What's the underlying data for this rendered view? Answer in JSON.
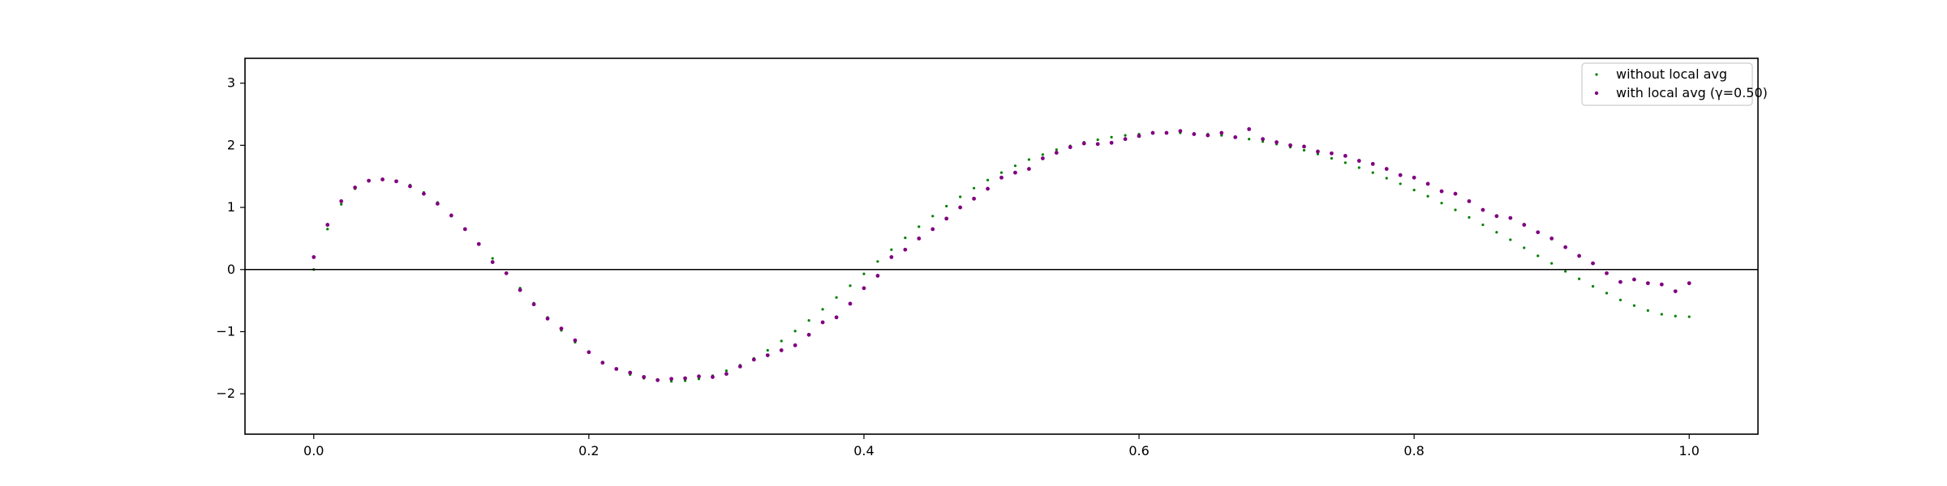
{
  "chart_data": {
    "type": "scatter",
    "title": "",
    "xlabel": "",
    "ylabel": "",
    "xlim": [
      -0.05,
      1.05
    ],
    "ylim": [
      -2.65,
      3.4
    ],
    "xticks": [
      0.0,
      0.2,
      0.4,
      0.6,
      0.8,
      1.0
    ],
    "xtick_labels": [
      "0.0",
      "0.2",
      "0.4",
      "0.6",
      "0.8",
      "1.0"
    ],
    "yticks": [
      -2,
      -1,
      0,
      1,
      2,
      3
    ],
    "ytick_labels": [
      "−2",
      "−1",
      "0",
      "1",
      "2",
      "3"
    ],
    "hline_y": 0,
    "grid": false,
    "legend_position": "top-right",
    "series": [
      {
        "name": "without local avg",
        "color": "#008000",
        "marker_size": "small",
        "x": [
          0.0,
          0.01,
          0.02,
          0.03,
          0.04,
          0.05,
          0.06,
          0.07,
          0.08,
          0.09,
          0.1,
          0.11,
          0.12,
          0.13,
          0.14,
          0.15,
          0.16,
          0.17,
          0.18,
          0.19,
          0.2,
          0.21,
          0.22,
          0.23,
          0.24,
          0.25,
          0.26,
          0.27,
          0.28,
          0.29,
          0.3,
          0.31,
          0.32,
          0.33,
          0.34,
          0.35,
          0.36,
          0.37,
          0.38,
          0.39,
          0.4,
          0.41,
          0.42,
          0.43,
          0.44,
          0.45,
          0.46,
          0.47,
          0.48,
          0.49,
          0.5,
          0.51,
          0.52,
          0.53,
          0.54,
          0.55,
          0.56,
          0.57,
          0.58,
          0.59,
          0.6,
          0.61,
          0.62,
          0.63,
          0.64,
          0.65,
          0.66,
          0.67,
          0.68,
          0.69,
          0.7,
          0.71,
          0.72,
          0.73,
          0.74,
          0.75,
          0.76,
          0.77,
          0.78,
          0.79,
          0.8,
          0.81,
          0.82,
          0.83,
          0.84,
          0.85,
          0.86,
          0.87,
          0.88,
          0.89,
          0.9,
          0.91,
          0.92,
          0.93,
          0.94,
          0.95,
          0.96,
          0.97,
          0.98,
          0.99,
          1.0
        ],
        "y": [
          0.0,
          0.65,
          1.05,
          1.3,
          1.42,
          1.46,
          1.43,
          1.36,
          1.24,
          1.08,
          0.88,
          0.66,
          0.42,
          0.18,
          -0.06,
          -0.3,
          -0.54,
          -0.77,
          -0.98,
          -1.17,
          -1.34,
          -1.49,
          -1.6,
          -1.69,
          -1.75,
          -1.79,
          -1.8,
          -1.79,
          -1.76,
          -1.71,
          -1.63,
          -1.54,
          -1.43,
          -1.3,
          -1.15,
          -0.99,
          -0.82,
          -0.64,
          -0.45,
          -0.26,
          -0.07,
          0.13,
          0.32,
          0.51,
          0.69,
          0.86,
          1.02,
          1.17,
          1.31,
          1.44,
          1.56,
          1.67,
          1.77,
          1.85,
          1.93,
          1.99,
          2.05,
          2.09,
          2.13,
          2.16,
          2.18,
          2.19,
          2.2,
          2.2,
          2.19,
          2.18,
          2.16,
          2.13,
          2.1,
          2.06,
          2.02,
          1.97,
          1.92,
          1.86,
          1.79,
          1.72,
          1.64,
          1.56,
          1.47,
          1.38,
          1.28,
          1.18,
          1.07,
          0.96,
          0.84,
          0.72,
          0.6,
          0.48,
          0.35,
          0.22,
          0.1,
          -0.03,
          -0.15,
          -0.27,
          -0.38,
          -0.49,
          -0.58,
          -0.66,
          -0.72,
          -0.75,
          -0.76
        ]
      },
      {
        "name": "with local avg (γ=0.50)",
        "color": "#800080",
        "marker_size": "medium",
        "x": [
          0.0,
          0.01,
          0.02,
          0.03,
          0.04,
          0.05,
          0.06,
          0.07,
          0.08,
          0.09,
          0.1,
          0.11,
          0.12,
          0.13,
          0.14,
          0.15,
          0.16,
          0.17,
          0.18,
          0.19,
          0.2,
          0.21,
          0.22,
          0.23,
          0.24,
          0.25,
          0.26,
          0.27,
          0.28,
          0.29,
          0.3,
          0.31,
          0.32,
          0.33,
          0.34,
          0.35,
          0.36,
          0.37,
          0.38,
          0.39,
          0.4,
          0.41,
          0.42,
          0.43,
          0.44,
          0.45,
          0.46,
          0.47,
          0.48,
          0.49,
          0.5,
          0.51,
          0.52,
          0.53,
          0.54,
          0.55,
          0.56,
          0.57,
          0.58,
          0.59,
          0.6,
          0.61,
          0.62,
          0.63,
          0.64,
          0.65,
          0.66,
          0.67,
          0.68,
          0.69,
          0.7,
          0.71,
          0.72,
          0.73,
          0.74,
          0.75,
          0.76,
          0.77,
          0.78,
          0.79,
          0.8,
          0.81,
          0.82,
          0.83,
          0.84,
          0.85,
          0.86,
          0.87,
          0.88,
          0.89,
          0.9,
          0.91,
          0.92,
          0.93,
          0.94,
          0.95,
          0.96,
          0.97,
          0.98,
          0.99,
          1.0
        ],
        "y": [
          0.2,
          0.72,
          1.1,
          1.32,
          1.43,
          1.45,
          1.42,
          1.34,
          1.22,
          1.06,
          0.87,
          0.65,
          0.41,
          0.12,
          -0.06,
          -0.33,
          -0.56,
          -0.79,
          -0.95,
          -1.14,
          -1.33,
          -1.5,
          -1.6,
          -1.66,
          -1.73,
          -1.78,
          -1.76,
          -1.75,
          -1.72,
          -1.73,
          -1.68,
          -1.56,
          -1.45,
          -1.38,
          -1.3,
          -1.22,
          -1.05,
          -0.85,
          -0.77,
          -0.55,
          -0.3,
          -0.1,
          0.2,
          0.32,
          0.5,
          0.65,
          0.82,
          1.0,
          1.14,
          1.3,
          1.48,
          1.56,
          1.62,
          1.79,
          1.88,
          1.97,
          2.03,
          2.02,
          2.04,
          2.1,
          2.15,
          2.2,
          2.2,
          2.23,
          2.18,
          2.16,
          2.2,
          2.13,
          2.26,
          2.1,
          2.05,
          2.0,
          1.98,
          1.9,
          1.87,
          1.83,
          1.75,
          1.7,
          1.62,
          1.52,
          1.48,
          1.38,
          1.26,
          1.22,
          1.1,
          0.96,
          0.86,
          0.83,
          0.72,
          0.6,
          0.5,
          0.36,
          0.22,
          0.1,
          -0.06,
          -0.2,
          -0.16,
          -0.22,
          -0.24,
          -0.35,
          -0.22
        ]
      }
    ]
  }
}
